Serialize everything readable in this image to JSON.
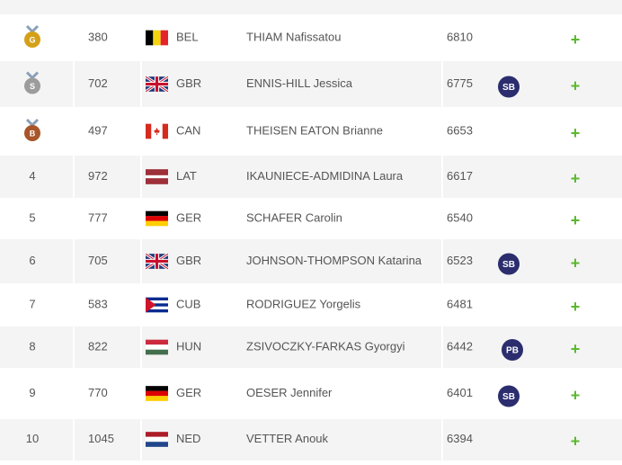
{
  "table": {
    "rows": [
      {
        "medal": "G",
        "bib": "380",
        "country": "BEL",
        "name": "THIAM Nafissatou",
        "score": "6810",
        "action": "+"
      },
      {
        "medal": "S",
        "bib": "702",
        "country": "GBR",
        "name": "ENNIS-HILL Jessica",
        "score": "6775",
        "badge": "SB",
        "action": "+"
      },
      {
        "medal": "B",
        "bib": "497",
        "country": "CAN",
        "name": "THEISEN EATON Brianne",
        "score": "6653",
        "action": "+"
      },
      {
        "rank": "4",
        "bib": "972",
        "country": "LAT",
        "name": "IKAUNIECE-ADMIDINA Laura",
        "score": "6617",
        "action": "+"
      },
      {
        "rank": "5",
        "bib": "777",
        "country": "GER",
        "name": "SCHAFER Carolin",
        "score": "6540",
        "action": "+"
      },
      {
        "rank": "6",
        "bib": "705",
        "country": "GBR",
        "name": "JOHNSON-THOMPSON Katarina",
        "score": "6523",
        "badge": "SB",
        "action": "+"
      },
      {
        "rank": "7",
        "bib": "583",
        "country": "CUB",
        "name": "RODRIGUEZ Yorgelis",
        "score": "6481",
        "action": "+"
      },
      {
        "rank": "8",
        "bib": "822",
        "country": "HUN",
        "name": "ZSIVOCZKY-FARKAS Gyorgyi",
        "score": "6442",
        "badge": "PB",
        "action": "+"
      },
      {
        "rank": "9",
        "bib": "770",
        "country": "GER",
        "name": "OESER Jennifer",
        "score": "6401",
        "badge": "SB",
        "action": "+"
      },
      {
        "rank": "10",
        "bib": "1045",
        "country": "NED",
        "name": "VETTER Anouk",
        "score": "6394",
        "action": "+"
      }
    ]
  }
}
